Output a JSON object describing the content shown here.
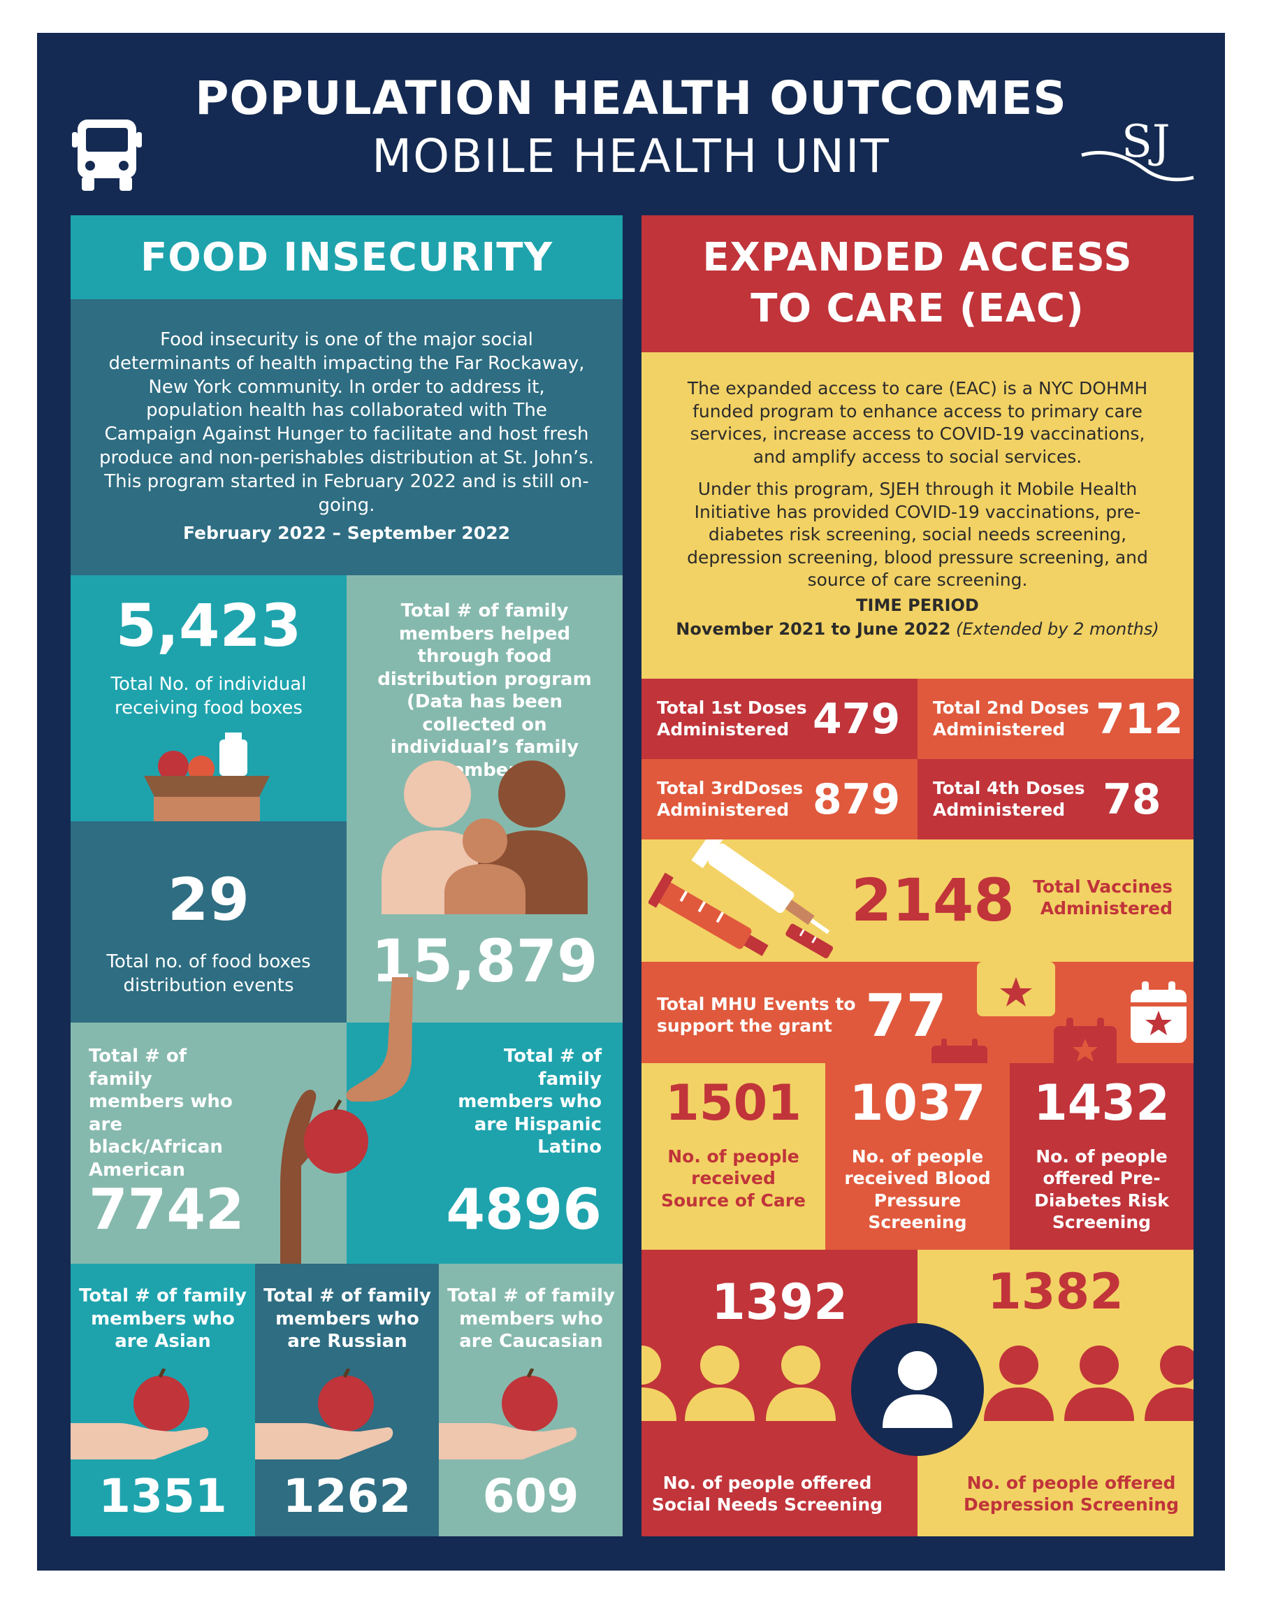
{
  "header": {
    "title": "POPULATION HEALTH OUTCOMES",
    "subtitle": "MOBILE HEALTH UNIT",
    "logo_text": "SJ",
    "icon": "bus-icon"
  },
  "food": {
    "heading": "FOOD INSECURITY",
    "description": "Food insecurity is one of the major social determinants of health impacting the Far Rockaway, New York community. In order to address it, population health has collaborated with The Campaign Against Hunger to facilitate and host fresh produce and non-perishables distribution at St. John’s. This program started in February 2022 and is still on-going.",
    "period": "February 2022 – September 2022",
    "individuals": {
      "value": "5,423",
      "label": "Total No. of individual receiving food boxes"
    },
    "family_helped": {
      "value": "15,879",
      "label": "Total # of family members helped through food distribution program (Data has been collected on individual’s family members)"
    },
    "events": {
      "value": "29",
      "label": "Total no. of food boxes distribution events"
    },
    "black": {
      "value": "7742",
      "label": "Total # of family members who are black/African American"
    },
    "hispanic": {
      "value": "4896",
      "label": "Total # of family members who are Hispanic Latino"
    },
    "asian": {
      "value": "1351",
      "label": "Total # of family members who are Asian"
    },
    "russian": {
      "value": "1262",
      "label": "Total # of family members who are Russian"
    },
    "caucasian": {
      "value": "609",
      "label": "Total # of family members who are Caucasian"
    }
  },
  "eac": {
    "heading_line1": "EXPANDED ACCESS",
    "heading_line2": "TO CARE (EAC)",
    "description1": "The expanded access to care (EAC) is a NYC DOHMH funded program to enhance access to primary care services, increase access to COVID-19 vaccinations, and amplify access to social services.",
    "description2": "Under this program, SJEH through it Mobile Health Initiative has provided COVID-19 vaccinations, pre-diabetes risk screening, social needs screening, depression screening, blood pressure screening, and source of care screening.",
    "time_label": "TIME PERIOD",
    "time_value": "November 2021 to June 2022",
    "time_note": "(Extended by 2 months)",
    "dose1": {
      "label": "Total 1st Doses Administered",
      "value": "479"
    },
    "dose2": {
      "label": "Total 2nd Doses Administered",
      "value": "712"
    },
    "dose3": {
      "label": "Total 3rdDoses Administered",
      "value": "879"
    },
    "dose4": {
      "label": "Total 4th Doses Administered",
      "value": "78"
    },
    "vaccines": {
      "value": "2148",
      "label": "Total Vaccines Administered"
    },
    "events": {
      "label": "Total MHU Events to support the grant",
      "value": "77"
    },
    "source_care": {
      "value": "1501",
      "label": "No. of people received Source of Care"
    },
    "blood_pressure": {
      "value": "1037",
      "label": "No. of people received Blood Pressure Screening"
    },
    "pre_diabetes": {
      "value": "1432",
      "label": "No. of people offered Pre-Diabetes Risk Screening"
    },
    "social_needs": {
      "value": "1392",
      "label": "No. of people offered Social Needs Screening"
    },
    "depression": {
      "value": "1382",
      "label": "No. of people offered Depression Screening"
    }
  },
  "colors": {
    "navy": "#142a52",
    "teal": "#1ea3ad",
    "dark_teal": "#2e6d82",
    "sage": "#86b9ad",
    "red": "#c0343a",
    "orange_red": "#e0593c",
    "yellow": "#f2d264"
  }
}
